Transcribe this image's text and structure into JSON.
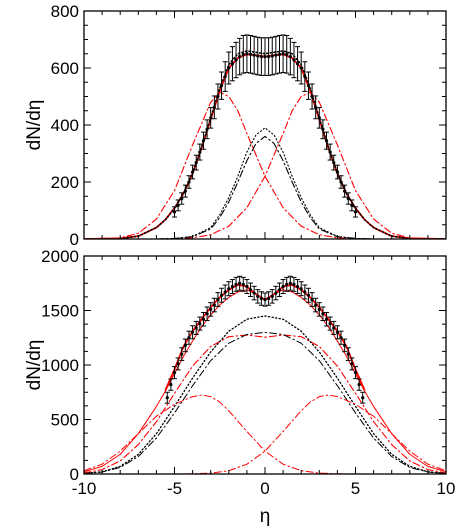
{
  "chart_data": [
    {
      "type": "line",
      "panel": "top",
      "title": "",
      "xlabel": "",
      "ylabel": "dN/dη",
      "xlim": [
        -10,
        10
      ],
      "ylim": [
        0,
        800
      ],
      "xticks": [
        -10,
        -5,
        0,
        5,
        10
      ],
      "yticks": [
        0,
        200,
        400,
        600,
        800
      ],
      "ytick_labels": [
        "0",
        "200",
        "400",
        "600",
        "800"
      ],
      "grid": false,
      "legend": "none",
      "series": [
        {
          "style": "solid",
          "color": "#ff0000",
          "width": 1.8,
          "x": [
            -10,
            -8,
            -7,
            -6,
            -5.5,
            -5,
            -4.5,
            -4,
            -3.5,
            -3,
            -2.5,
            -2,
            -1.5,
            -1,
            -0.5,
            0,
            0.5,
            1,
            1.5,
            2,
            2.5,
            3,
            3.5,
            4,
            4.5,
            5,
            5.5,
            6,
            7,
            8,
            10
          ],
          "y": [
            0,
            2,
            10,
            40,
            68,
            108,
            160,
            230,
            320,
            420,
            520,
            600,
            635,
            648,
            645,
            640,
            645,
            648,
            635,
            600,
            520,
            420,
            320,
            230,
            160,
            108,
            68,
            40,
            10,
            2,
            0
          ]
        },
        {
          "style": "dotted",
          "color": "#000000",
          "width": 1.6,
          "x": [
            -10,
            -8,
            -7,
            -6,
            -5.5,
            -5,
            -4.5,
            -4,
            -3.5,
            -3,
            -2.5,
            -2,
            -1.5,
            -1,
            -0.5,
            0,
            0.5,
            1,
            1.5,
            2,
            2.5,
            3,
            3.5,
            4,
            4.5,
            5,
            5.5,
            6,
            7,
            8,
            10
          ],
          "y": [
            0,
            2,
            10,
            40,
            68,
            108,
            160,
            232,
            322,
            425,
            528,
            612,
            650,
            660,
            655,
            650,
            655,
            660,
            650,
            612,
            528,
            425,
            322,
            232,
            160,
            108,
            68,
            40,
            10,
            2,
            0
          ]
        },
        {
          "style": "dashdot",
          "color": "#ff0000",
          "width": 1.1,
          "x": [
            -10,
            -8,
            -7,
            -6,
            -5,
            -4,
            -3,
            -2.5,
            -2,
            -1.5,
            -1,
            0,
            1,
            2,
            3,
            4,
            5,
            6
          ],
          "y": [
            0,
            4,
            20,
            70,
            170,
            330,
            480,
            515,
            500,
            450,
            370,
            220,
            110,
            45,
            15,
            4,
            1,
            0
          ]
        },
        {
          "style": "dashdot",
          "color": "#ff0000",
          "width": 1.1,
          "x": [
            -6,
            -5,
            -4,
            -3,
            -2,
            -1,
            0,
            1,
            1.5,
            2,
            2.5,
            3,
            4,
            5,
            6,
            7,
            8,
            10
          ],
          "y": [
            0,
            1,
            4,
            15,
            45,
            110,
            220,
            370,
            450,
            500,
            515,
            480,
            330,
            170,
            70,
            20,
            4,
            0
          ]
        },
        {
          "style": "dashdot",
          "color": "#000000",
          "width": 1.1,
          "x": [
            -6,
            -5,
            -4,
            -3,
            -2.5,
            -2,
            -1.5,
            -1,
            -0.5,
            0,
            0.5,
            1,
            1.5,
            2,
            2.5,
            3,
            4,
            5,
            6
          ],
          "y": [
            0,
            2,
            8,
            35,
            75,
            130,
            200,
            275,
            335,
            360,
            335,
            275,
            200,
            130,
            75,
            35,
            8,
            2,
            0
          ]
        },
        {
          "style": "dotted",
          "color": "#000000",
          "width": 1.1,
          "x": [
            -6,
            -5,
            -4,
            -3,
            -2.5,
            -2,
            -1.5,
            -1,
            -0.5,
            0,
            0.5,
            1,
            1.5,
            2,
            2.5,
            3,
            4,
            5,
            6
          ],
          "y": [
            0,
            2,
            9,
            40,
            85,
            145,
            220,
            305,
            365,
            390,
            365,
            305,
            220,
            145,
            85,
            40,
            9,
            2,
            0
          ]
        }
      ],
      "points": {
        "x": [
          -5.0,
          -4.8,
          -4.6,
          -4.4,
          -4.2,
          -4.0,
          -3.8,
          -3.6,
          -3.4,
          -3.2,
          -3.0,
          -2.8,
          -2.6,
          -2.4,
          -2.2,
          -2.0,
          -1.8,
          -1.6,
          -1.4,
          -1.2,
          -1.0,
          -0.8,
          -0.6,
          -0.4,
          -0.2,
          0.0,
          0.2,
          0.4,
          0.6,
          0.8,
          1.0,
          1.2,
          1.4,
          1.6,
          1.8,
          2.0,
          2.2,
          2.4,
          2.6,
          2.8,
          3.0,
          3.2,
          3.4,
          3.6,
          3.8,
          4.0,
          4.2,
          4.4,
          4.6,
          4.8,
          5.0
        ],
        "y": [
          95,
          118,
          142,
          168,
          200,
          235,
          268,
          305,
          345,
          385,
          425,
          462,
          500,
          538,
          570,
          600,
          615,
          628,
          640,
          648,
          650,
          648,
          645,
          642,
          640,
          640,
          640,
          642,
          645,
          648,
          650,
          648,
          640,
          628,
          615,
          600,
          570,
          538,
          500,
          462,
          425,
          385,
          345,
          305,
          268,
          235,
          200,
          168,
          142,
          118,
          95
        ],
        "err": [
          18,
          19,
          20,
          21,
          22,
          24,
          26,
          28,
          30,
          33,
          36,
          40,
          44,
          48,
          52,
          56,
          60,
          62,
          64,
          66,
          66,
          66,
          66,
          66,
          66,
          66,
          66,
          66,
          66,
          66,
          66,
          66,
          64,
          62,
          60,
          56,
          52,
          48,
          44,
          40,
          36,
          33,
          30,
          28,
          26,
          24,
          22,
          21,
          20,
          19,
          18
        ]
      }
    },
    {
      "type": "line",
      "panel": "bottom",
      "title": "",
      "xlabel": "η",
      "ylabel": "dN/dη",
      "xlim": [
        -10,
        10
      ],
      "ylim": [
        0,
        2000
      ],
      "xticks": [
        -10,
        -5,
        0,
        5,
        10
      ],
      "xtick_labels": [
        "-10",
        "-5",
        "0",
        "5",
        "10"
      ],
      "yticks": [
        0,
        500,
        1000,
        1500,
        2000
      ],
      "ytick_labels": [
        "0",
        "500",
        "1000",
        "1500",
        "2000"
      ],
      "grid": false,
      "legend": "none",
      "series": [
        {
          "style": "solid",
          "color": "#ff0000",
          "width": 1.8,
          "x": [
            -5.5,
            -5,
            -4.5,
            -4,
            -3.5,
            -3,
            -2.5,
            -2,
            -1.5,
            -1,
            -0.5,
            0,
            0.5,
            1,
            1.5,
            2,
            2.5,
            3,
            3.5,
            4,
            4.5,
            5,
            5.5
          ],
          "y": [
            770,
            960,
            1170,
            1310,
            1420,
            1530,
            1620,
            1690,
            1735,
            1720,
            1650,
            1600,
            1650,
            1720,
            1735,
            1690,
            1620,
            1530,
            1420,
            1310,
            1170,
            960,
            770
          ]
        },
        {
          "style": "solid",
          "color": "#ff0000",
          "width": 1.0,
          "x": [
            -10,
            -9,
            -8,
            -7,
            -6,
            -5.5,
            -5,
            -4.5,
            -4,
            -3.5,
            -3,
            -2.5,
            -2,
            -1.5,
            -1,
            -0.5,
            0,
            0.5,
            1,
            1.5,
            2,
            2.5,
            3,
            3.5,
            4,
            4.5,
            5,
            5.5,
            6,
            7,
            8,
            9,
            10
          ],
          "y": [
            20,
            70,
            180,
            370,
            620,
            760,
            920,
            1080,
            1220,
            1350,
            1460,
            1550,
            1620,
            1670,
            1690,
            1650,
            1600,
            1650,
            1690,
            1670,
            1620,
            1550,
            1460,
            1350,
            1220,
            1080,
            920,
            760,
            620,
            370,
            180,
            70,
            20
          ]
        },
        {
          "style": "dashdot",
          "color": "#ff0000",
          "width": 1.1,
          "x": [
            -10,
            -9,
            -8,
            -7,
            -6,
            -5,
            -4,
            -3,
            -2,
            -1,
            -0.5,
            0,
            0.5,
            1,
            2,
            3,
            4,
            5,
            6,
            7,
            8,
            9,
            10
          ],
          "y": [
            10,
            40,
            120,
            270,
            480,
            740,
            990,
            1170,
            1260,
            1275,
            1265,
            1255,
            1265,
            1275,
            1260,
            1170,
            990,
            740,
            480,
            270,
            120,
            40,
            10
          ]
        },
        {
          "style": "dotted",
          "color": "#000000",
          "width": 1.3,
          "x": [
            -10,
            -9,
            -8,
            -7,
            -6,
            -5,
            -4,
            -3,
            -2,
            -1,
            0,
            1,
            2,
            3,
            4,
            5,
            6,
            7,
            8,
            9,
            10
          ],
          "y": [
            5,
            20,
            70,
            180,
            370,
            620,
            880,
            1120,
            1310,
            1420,
            1450,
            1420,
            1310,
            1120,
            880,
            620,
            370,
            180,
            70,
            20,
            5
          ]
        },
        {
          "style": "dashdot",
          "color": "#000000",
          "width": 1.0,
          "x": [
            -10,
            -9,
            -8,
            -7,
            -6,
            -5,
            -4,
            -3,
            -2,
            -1,
            0,
            1,
            2,
            3,
            4,
            5,
            6,
            7,
            8,
            9,
            10
          ],
          "y": [
            5,
            18,
            60,
            160,
            330,
            560,
            810,
            1040,
            1200,
            1280,
            1300,
            1280,
            1200,
            1040,
            810,
            560,
            330,
            160,
            60,
            18,
            5
          ]
        },
        {
          "style": "dashdot",
          "color": "#ff0000",
          "width": 1.0,
          "x": [
            -10,
            -9,
            -8,
            -7,
            -6,
            -5,
            -4,
            -3.5,
            -3,
            -2.5,
            -2,
            -1,
            0,
            1,
            2,
            3,
            4,
            6
          ],
          "y": [
            30,
            90,
            210,
            370,
            530,
            640,
            710,
            725,
            710,
            660,
            580,
            390,
            210,
            90,
            30,
            8,
            2,
            0
          ]
        },
        {
          "style": "dashdot",
          "color": "#ff0000",
          "width": 1.0,
          "x": [
            -6,
            -4,
            -3,
            -2,
            -1,
            0,
            1,
            2,
            2.5,
            3,
            3.5,
            4,
            5,
            6,
            7,
            8,
            9,
            10
          ],
          "y": [
            0,
            2,
            8,
            30,
            90,
            210,
            390,
            580,
            660,
            710,
            725,
            710,
            640,
            530,
            370,
            210,
            90,
            30
          ]
        }
      ],
      "points": {
        "x": [
          -5.4,
          -5.2,
          -5.0,
          -4.8,
          -4.6,
          -4.4,
          -4.2,
          -4.0,
          -3.8,
          -3.6,
          -3.4,
          -3.2,
          -3.0,
          -2.8,
          -2.6,
          -2.4,
          -2.2,
          -2.0,
          -1.8,
          -1.6,
          -1.4,
          -1.2,
          -1.0,
          -0.8,
          -0.6,
          -0.4,
          -0.2,
          0.0,
          0.2,
          0.4,
          0.6,
          0.8,
          1.0,
          1.2,
          1.4,
          1.6,
          1.8,
          2.0,
          2.2,
          2.4,
          2.6,
          2.8,
          3.0,
          3.2,
          3.4,
          3.6,
          3.8,
          4.0,
          4.2,
          4.4,
          4.6,
          4.8,
          5.0,
          5.2,
          5.4
        ],
        "y": [
          700,
          820,
          930,
          1010,
          1100,
          1180,
          1250,
          1300,
          1340,
          1380,
          1420,
          1470,
          1510,
          1550,
          1600,
          1640,
          1670,
          1700,
          1720,
          1740,
          1750,
          1740,
          1720,
          1690,
          1660,
          1630,
          1610,
          1600,
          1610,
          1630,
          1660,
          1690,
          1720,
          1740,
          1750,
          1740,
          1720,
          1700,
          1670,
          1640,
          1600,
          1550,
          1510,
          1470,
          1420,
          1380,
          1340,
          1300,
          1250,
          1180,
          1100,
          1010,
          930,
          820,
          700
        ],
        "err": [
          50,
          52,
          55,
          55,
          58,
          58,
          60,
          60,
          60,
          60,
          62,
          62,
          62,
          62,
          64,
          64,
          64,
          64,
          64,
          64,
          64,
          64,
          64,
          62,
          62,
          62,
          62,
          60,
          62,
          62,
          62,
          62,
          64,
          64,
          64,
          64,
          64,
          64,
          64,
          64,
          64,
          62,
          62,
          62,
          62,
          60,
          60,
          60,
          60,
          58,
          58,
          55,
          55,
          52,
          50
        ]
      }
    }
  ]
}
